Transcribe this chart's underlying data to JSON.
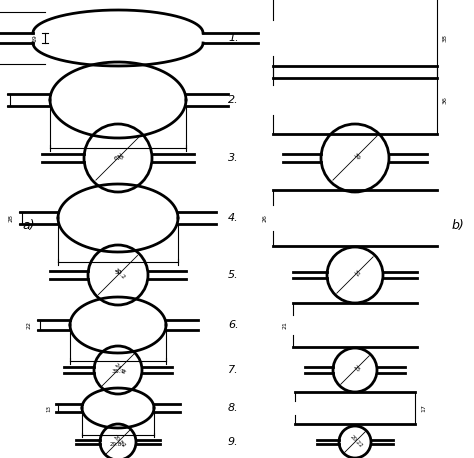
{
  "bg_color": "#ffffff",
  "line_color": "#000000",
  "figsize": [
    4.74,
    4.58
  ],
  "dpi": 100,
  "label_a": "a)",
  "label_b": "b)",
  "row_labels": [
    "1.",
    "2.",
    "3.",
    "4.",
    "5.",
    "6.",
    "7.",
    "8.",
    "9."
  ]
}
